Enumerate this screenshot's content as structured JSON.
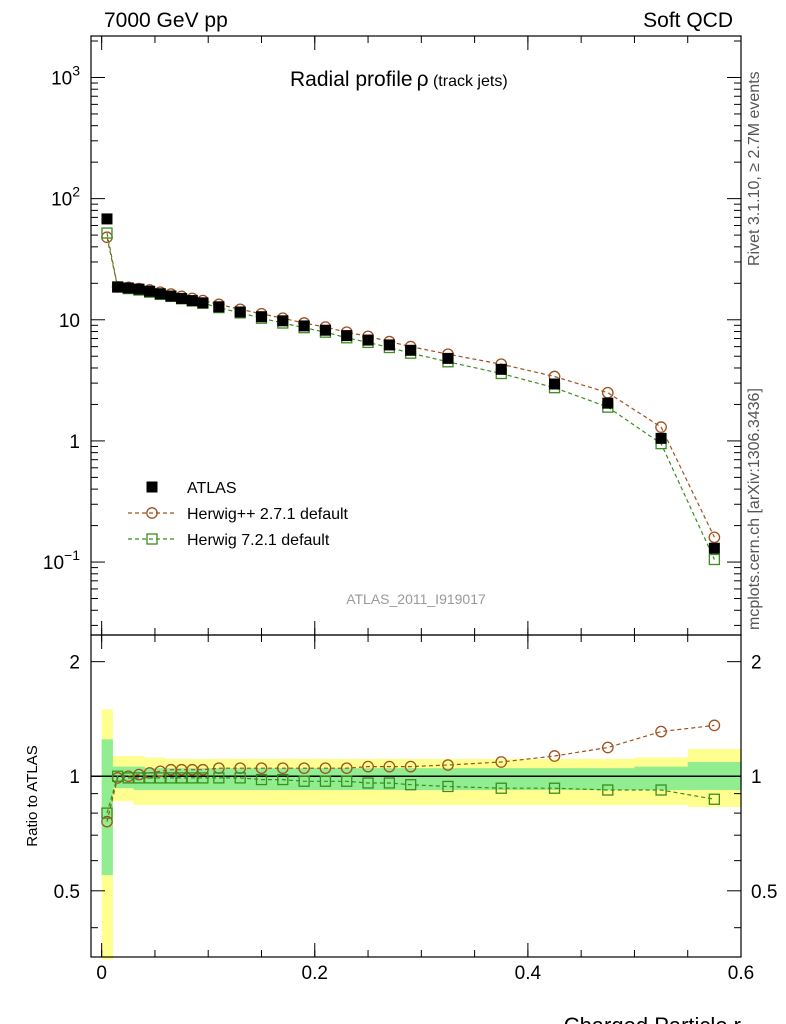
{
  "header": {
    "left": "7000 GeV pp",
    "right": "Soft QCD"
  },
  "side_labels": {
    "rivet": "Rivet 3.1.10, ≥ 2.7M events",
    "mcplots": "mcplots.cern.ch [arXiv:1306.3436]"
  },
  "title": {
    "main": "Radial profile",
    "symbol": "ρ",
    "suffix": " (track jets)"
  },
  "analysis_id": "ATLAS_2011_I919017",
  "colors": {
    "atlas": "#000000",
    "herwigpp": "#a0501e",
    "herwig7": "#3c8c1e",
    "band_inner": "#90ee90",
    "band_outer": "#ffff90",
    "analysis_text": "#999999",
    "side_text": "#555555"
  },
  "chart_data": [
    {
      "type": "scatter",
      "panel": "main",
      "yscale": "log",
      "xlim": [
        -0.01,
        0.6
      ],
      "ylim": [
        0.025,
        2200
      ],
      "xlabel": "",
      "ylabel": "",
      "yticks": [
        {
          "value": 1000,
          "base": "10",
          "exp": "3"
        },
        {
          "value": 100,
          "base": "10",
          "exp": "2"
        },
        {
          "value": 10,
          "base": "10",
          "exp": ""
        },
        {
          "value": 1,
          "base": "1",
          "exp": ""
        },
        {
          "value": 0.1,
          "base": "10",
          "exp": "−1"
        }
      ],
      "legend": {
        "position": "bottom-left",
        "entries": [
          "ATLAS",
          "Herwig++ 2.7.1 default",
          "Herwig 7.2.1 default"
        ]
      },
      "x": [
        0.005,
        0.015,
        0.025,
        0.035,
        0.045,
        0.055,
        0.065,
        0.075,
        0.085,
        0.095,
        0.11,
        0.13,
        0.15,
        0.17,
        0.19,
        0.21,
        0.23,
        0.25,
        0.27,
        0.29,
        0.325,
        0.375,
        0.425,
        0.475,
        0.525,
        0.575
      ],
      "series": [
        {
          "name": "ATLAS",
          "values": [
            68,
            18.6,
            18.3,
            17.9,
            17.2,
            16.4,
            15.7,
            15.0,
            14.4,
            13.8,
            12.8,
            11.6,
            10.6,
            9.8,
            8.9,
            8.2,
            7.4,
            6.8,
            6.2,
            5.6,
            4.8,
            3.9,
            2.95,
            2.05,
            1.05,
            0.13
          ]
        },
        {
          "name": "Herwig++ 2.7.1 default",
          "values": [
            48,
            18.7,
            18.5,
            18.1,
            17.6,
            16.9,
            16.3,
            15.6,
            15.0,
            14.4,
            13.4,
            12.2,
            11.2,
            10.3,
            9.4,
            8.7,
            7.9,
            7.3,
            6.6,
            6.0,
            5.2,
            4.3,
            3.4,
            2.5,
            1.3,
            0.16
          ]
        },
        {
          "name": "Herwig 7.2.1 default",
          "values": [
            52,
            18.7,
            18.1,
            17.6,
            16.9,
            16.2,
            15.6,
            14.9,
            14.3,
            13.7,
            12.6,
            11.4,
            10.3,
            9.4,
            8.6,
            7.9,
            7.1,
            6.5,
            5.9,
            5.3,
            4.5,
            3.6,
            2.75,
            1.9,
            0.95,
            0.105
          ]
        }
      ]
    },
    {
      "type": "scatter",
      "panel": "ratio",
      "xlim": [
        -0.01,
        0.6
      ],
      "ylim": [
        0.335,
        2.35
      ],
      "xlabel": "Charged Particle r",
      "ylabel": "Ratio to ATLAS",
      "xticks": [
        0,
        0.2,
        0.4,
        0.6
      ],
      "xtick_labels": [
        "0",
        "0.2",
        "0.4",
        "0.6"
      ],
      "yticks": [
        0.5,
        1,
        2
      ],
      "ytick_labels": [
        "0.5",
        "1",
        "2"
      ],
      "reference_line": 1,
      "x": [
        0.005,
        0.015,
        0.025,
        0.035,
        0.045,
        0.055,
        0.065,
        0.075,
        0.085,
        0.095,
        0.11,
        0.13,
        0.15,
        0.17,
        0.19,
        0.21,
        0.23,
        0.25,
        0.27,
        0.29,
        0.325,
        0.375,
        0.425,
        0.475,
        0.525,
        0.575
      ],
      "bin_edges": [
        0,
        0.01,
        0.02,
        0.03,
        0.04,
        0.05,
        0.06,
        0.07,
        0.08,
        0.09,
        0.1,
        0.12,
        0.14,
        0.16,
        0.18,
        0.2,
        0.22,
        0.24,
        0.26,
        0.28,
        0.3,
        0.35,
        0.4,
        0.45,
        0.5,
        0.55,
        0.6
      ],
      "band_outer": [
        [
          0.33,
          1.5
        ],
        [
          0.86,
          1.13
        ],
        [
          0.86,
          1.13
        ],
        [
          0.84,
          1.13
        ],
        [
          0.84,
          1.12
        ],
        [
          0.84,
          1.12
        ],
        [
          0.84,
          1.11
        ],
        [
          0.84,
          1.11
        ],
        [
          0.84,
          1.11
        ],
        [
          0.84,
          1.11
        ],
        [
          0.84,
          1.11
        ],
        [
          0.84,
          1.11
        ],
        [
          0.84,
          1.11
        ],
        [
          0.84,
          1.11
        ],
        [
          0.84,
          1.11
        ],
        [
          0.84,
          1.11
        ],
        [
          0.84,
          1.11
        ],
        [
          0.84,
          1.11
        ],
        [
          0.84,
          1.11
        ],
        [
          0.84,
          1.11
        ],
        [
          0.84,
          1.11
        ],
        [
          0.84,
          1.11
        ],
        [
          0.84,
          1.11
        ],
        [
          0.84,
          1.11
        ],
        [
          0.84,
          1.12
        ],
        [
          0.83,
          1.18
        ]
      ],
      "band_inner": [
        [
          0.55,
          1.25
        ],
        [
          0.93,
          1.06
        ],
        [
          0.93,
          1.06
        ],
        [
          0.92,
          1.06
        ],
        [
          0.92,
          1.05
        ],
        [
          0.92,
          1.05
        ],
        [
          0.92,
          1.05
        ],
        [
          0.92,
          1.05
        ],
        [
          0.92,
          1.05
        ],
        [
          0.92,
          1.05
        ],
        [
          0.92,
          1.05
        ],
        [
          0.92,
          1.05
        ],
        [
          0.92,
          1.05
        ],
        [
          0.92,
          1.05
        ],
        [
          0.92,
          1.05
        ],
        [
          0.92,
          1.05
        ],
        [
          0.92,
          1.05
        ],
        [
          0.92,
          1.05
        ],
        [
          0.92,
          1.05
        ],
        [
          0.92,
          1.05
        ],
        [
          0.92,
          1.05
        ],
        [
          0.92,
          1.05
        ],
        [
          0.92,
          1.05
        ],
        [
          0.92,
          1.05
        ],
        [
          0.92,
          1.06
        ],
        [
          0.92,
          1.09
        ]
      ],
      "series": [
        {
          "name": "Herwig++ 2.7.1 default",
          "values": [
            0.76,
            0.99,
            1.0,
            1.01,
            1.02,
            1.03,
            1.04,
            1.04,
            1.04,
            1.04,
            1.05,
            1.05,
            1.05,
            1.05,
            1.05,
            1.05,
            1.05,
            1.06,
            1.06,
            1.06,
            1.07,
            1.09,
            1.13,
            1.19,
            1.31,
            1.36
          ]
        },
        {
          "name": "Herwig 7.2.1 default",
          "values": [
            0.8,
            1.0,
            0.99,
            0.99,
            0.99,
            0.99,
            0.99,
            0.99,
            0.99,
            0.99,
            0.99,
            0.99,
            0.98,
            0.98,
            0.97,
            0.97,
            0.97,
            0.96,
            0.96,
            0.95,
            0.94,
            0.93,
            0.93,
            0.92,
            0.92,
            0.87
          ]
        }
      ]
    }
  ]
}
